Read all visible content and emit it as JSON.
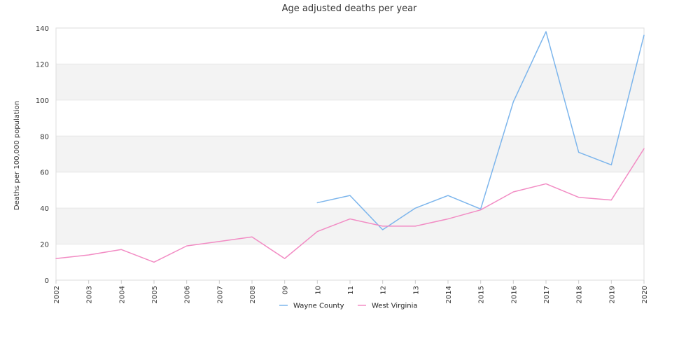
{
  "chart_data": {
    "type": "line",
    "title": "Age adjusted deaths per year",
    "xlabel": "",
    "ylabel": "Deaths per 100,000 population",
    "ylim": [
      0,
      140
    ],
    "yticks": [
      0,
      20,
      40,
      60,
      80,
      100,
      120,
      140
    ],
    "grid": true,
    "legend_position": "bottom-center",
    "categories": [
      "2002",
      "2003",
      "2004",
      "2005",
      "2006",
      "2007",
      "2008",
      "09",
      "10",
      "11",
      "12",
      "13",
      "2014",
      "2015",
      "2016",
      "2017",
      "2018",
      "2019",
      "2020"
    ],
    "series": [
      {
        "name": "Wayne County",
        "color": "#7cb5ec",
        "values": [
          null,
          null,
          null,
          null,
          null,
          null,
          null,
          null,
          43,
          47,
          28,
          40,
          47,
          39.5,
          99,
          138,
          71,
          64,
          136
        ]
      },
      {
        "name": "West Virginia",
        "color": "#f28cc4",
        "values": [
          12,
          14,
          17,
          10,
          19,
          21.5,
          24,
          12,
          27,
          34,
          30,
          30,
          34,
          39,
          49,
          53.5,
          46,
          44.5,
          73
        ]
      }
    ]
  }
}
